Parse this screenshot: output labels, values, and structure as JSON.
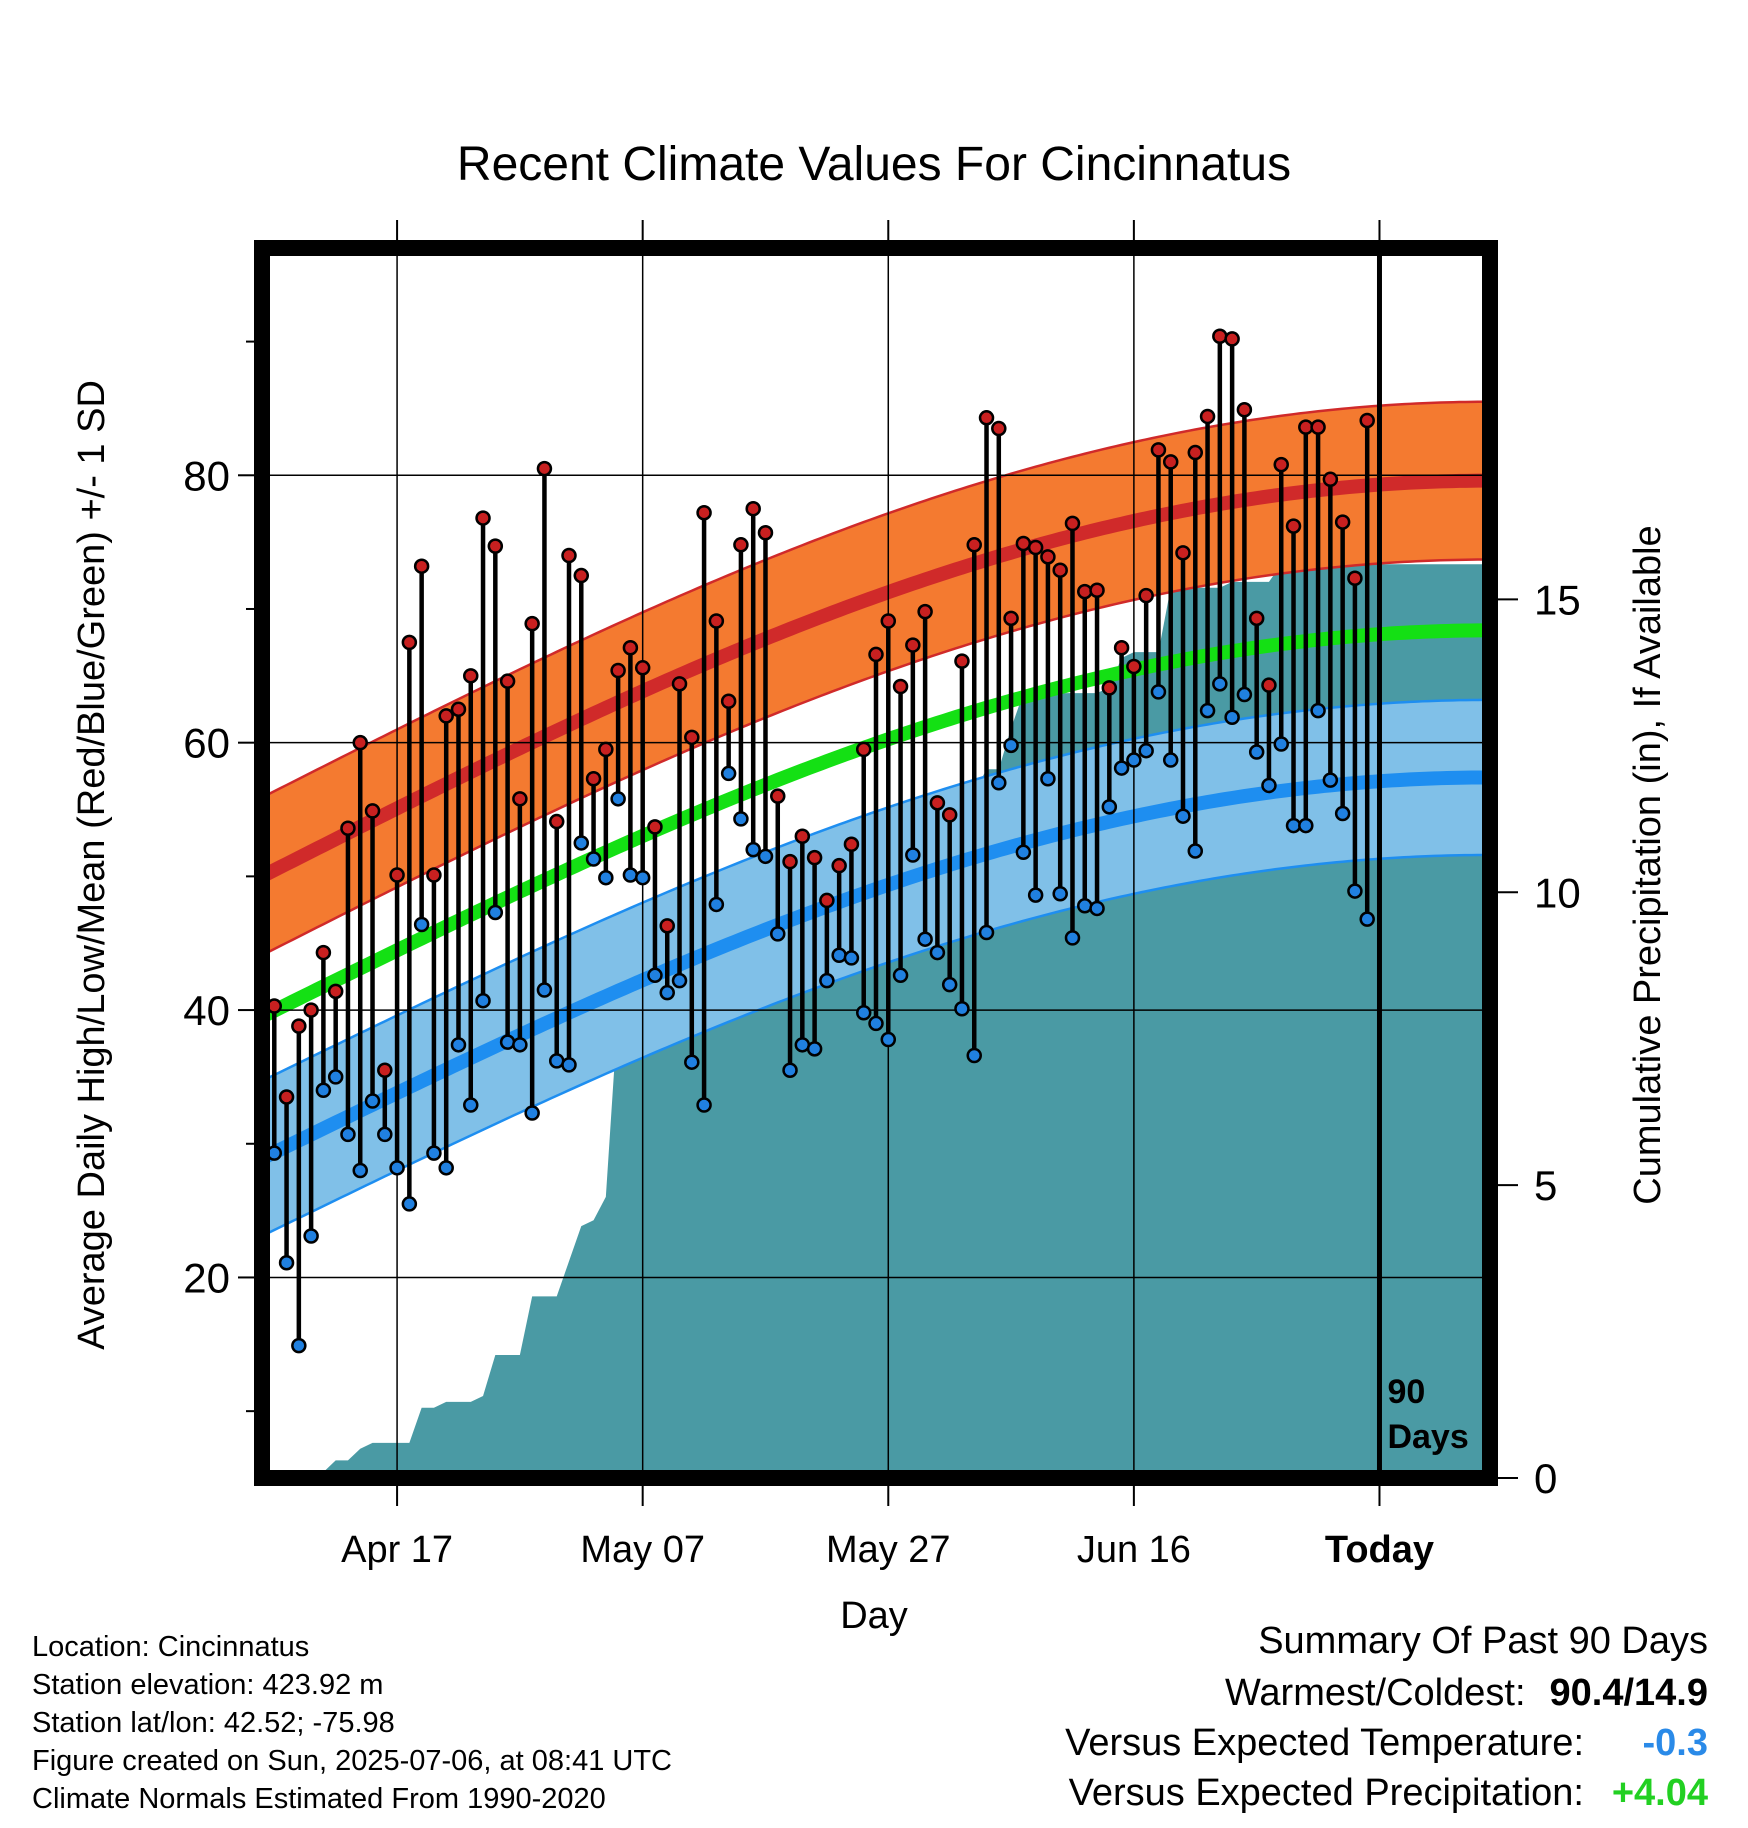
{
  "chart_data": {
    "type": "line",
    "title": "Recent Climate Values For Cincinnatus",
    "xlabel": "Day",
    "ylabel": "Average Daily High/Low/Mean (Red/Blue/Green) +/- 1 SD",
    "y2label": "Cumulative Precipitation (in), If Available",
    "ylim": [
      5,
      97
    ],
    "y2lim": [
      0,
      21
    ],
    "xlim": [
      -1,
      99
    ],
    "yticks": [
      20,
      40,
      60,
      80
    ],
    "y2ticks": [
      0,
      5,
      10,
      15
    ],
    "xticks": [
      {
        "day": 10,
        "label": "Apr 17"
      },
      {
        "day": 30,
        "label": "May 07"
      },
      {
        "day": 50,
        "label": "May 27"
      },
      {
        "day": 70,
        "label": "Jun 16"
      },
      {
        "day": 90,
        "label": "Today"
      }
    ],
    "today_marker": {
      "day": 90,
      "label_line1": "90",
      "label_line2": "Days"
    },
    "grid": true,
    "colors": {
      "high_band": "#f47a30",
      "high_line": "#d02a2a",
      "low_band": "#80c0e8",
      "low_line": "#1e8ef0",
      "mean_line": "#14e014",
      "precip": "#4a9aa4",
      "high_dot": "#c82020",
      "low_dot": "#2080e0"
    },
    "normal_high": {
      "start": 50.0,
      "end": 79.6
    },
    "normal_low": {
      "start": 28.9,
      "end": 57.4
    },
    "normal_mean": {
      "start": 39.5,
      "end": 68.4
    },
    "sd_high": 5.9,
    "sd_low": 5.8,
    "daily_high": [
      40.3,
      33.5,
      38.8,
      40.0,
      44.3,
      41.4,
      53.6,
      60.0,
      54.9,
      35.5,
      50.1,
      67.5,
      73.2,
      50.1,
      62.0,
      62.5,
      65.0,
      76.8,
      74.7,
      64.6,
      55.8,
      68.9,
      80.5,
      54.1,
      74.0,
      72.5,
      57.3,
      59.5,
      65.4,
      67.1,
      65.6,
      53.7,
      46.3,
      64.4,
      60.4,
      77.2,
      69.1,
      63.1,
      74.8,
      77.5,
      75.7,
      56.0,
      51.1,
      53.0,
      51.4,
      48.2,
      50.8,
      52.4,
      59.5,
      66.6,
      69.1,
      64.2,
      67.3,
      69.8,
      55.5,
      54.6,
      66.1,
      74.8,
      84.3,
      83.5,
      69.3,
      74.9,
      74.6,
      73.9,
      72.9,
      76.4,
      71.3,
      71.4,
      64.1,
      67.1,
      65.7,
      71.0,
      81.9,
      81.0,
      74.2,
      81.7,
      84.4,
      90.4,
      90.2,
      84.9,
      69.3,
      64.3,
      80.8,
      76.2,
      83.6,
      83.6,
      79.7,
      76.5,
      72.3,
      84.1
    ],
    "daily_low": [
      29.3,
      21.1,
      14.9,
      23.1,
      34.0,
      35.0,
      30.7,
      28.0,
      33.2,
      30.7,
      28.2,
      25.5,
      46.4,
      29.3,
      28.2,
      37.4,
      32.9,
      40.7,
      47.3,
      37.6,
      37.4,
      32.3,
      41.5,
      36.2,
      35.9,
      52.5,
      51.3,
      49.9,
      55.8,
      50.1,
      49.9,
      42.6,
      41.3,
      42.2,
      36.1,
      32.9,
      47.9,
      57.7,
      54.3,
      52.0,
      51.5,
      45.7,
      35.5,
      37.4,
      37.1,
      42.2,
      44.1,
      43.9,
      39.8,
      39.0,
      37.8,
      42.6,
      51.6,
      45.3,
      44.3,
      41.9,
      40.1,
      36.6,
      45.8,
      57.0,
      59.8,
      51.8,
      48.6,
      57.3,
      48.7,
      45.4,
      47.8,
      47.6,
      55.2,
      58.1,
      58.7,
      59.4,
      63.8,
      58.7,
      54.5,
      51.9,
      62.4,
      64.4,
      61.9,
      63.6,
      59.3,
      56.8,
      59.9,
      53.8,
      53.8,
      62.4,
      57.2,
      54.7,
      48.9,
      46.8
    ],
    "cumulative_precip": [
      0.0,
      0.0,
      0.0,
      0.0,
      0.1,
      0.3,
      0.3,
      0.5,
      0.6,
      0.6,
      0.6,
      0.6,
      1.2,
      1.2,
      1.3,
      1.3,
      1.3,
      1.4,
      2.1,
      2.1,
      2.1,
      3.1,
      3.1,
      3.1,
      3.7,
      4.3,
      4.4,
      4.8,
      8.0,
      8.0,
      8.0,
      8.4,
      8.4,
      8.4,
      8.4,
      8.4,
      8.5,
      8.7,
      9.3,
      9.3,
      9.3,
      9.4,
      9.8,
      10.1,
      10.3,
      10.3,
      10.3,
      10.3,
      10.5,
      10.5,
      10.5,
      10.6,
      10.6,
      10.8,
      10.8,
      10.8,
      10.8,
      11.7,
      12.1,
      12.1,
      12.8,
      13.4,
      13.4,
      13.4,
      13.4,
      13.4,
      13.4,
      13.4,
      13.5,
      14.0,
      14.1,
      14.1,
      14.1,
      15.2,
      15.2,
      15.2,
      15.2,
      15.2,
      15.3,
      15.3,
      15.3,
      15.3,
      15.6,
      15.6,
      15.6,
      15.6,
      15.6,
      15.6,
      15.6,
      15.6
    ]
  },
  "info": {
    "location": "Location: Cincinnatus",
    "elevation": "Station elevation: 423.92 m",
    "latlon": "Station lat/lon: 42.52; -75.98",
    "created": "Figure created on Sun, 2025-07-06, at 08:41 UTC",
    "normals": "Climate Normals Estimated From 1990-2020"
  },
  "summary": {
    "title": "Summary Of Past 90 Days",
    "warmest_coldest_label": "Warmest/Coldest:",
    "warmest_coldest_value": "90.4/14.9",
    "temp_label": "Versus Expected Temperature:",
    "temp_value": "-0.3",
    "temp_color": "#2a8ae8",
    "precip_label": "Versus Expected Precipitation:",
    "precip_value": "+4.04",
    "precip_color": "#22d022"
  }
}
